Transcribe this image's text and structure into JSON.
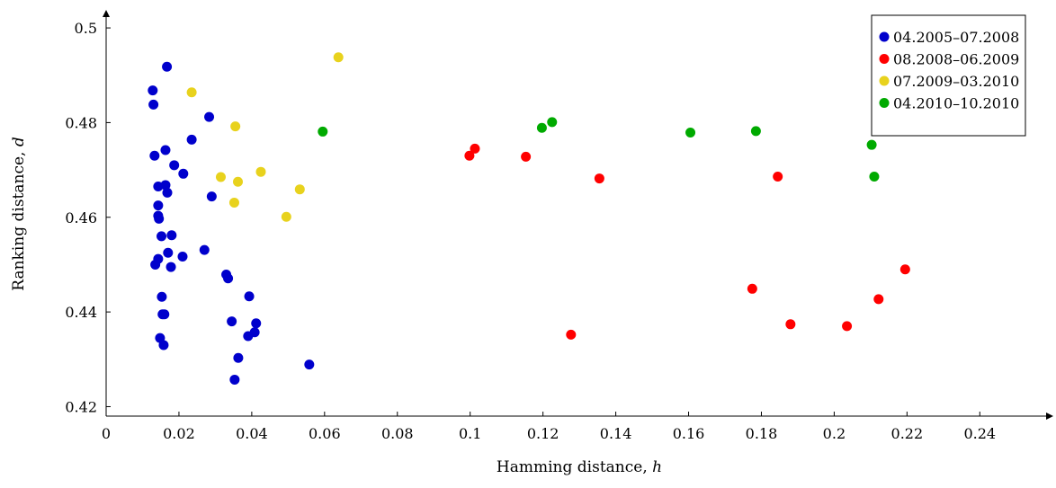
{
  "chart_data": {
    "type": "scatter",
    "xlabel": "Hamming distance, ",
    "xlabel_var": "h",
    "ylabel": "Ranking distance, ",
    "ylabel_var": "d",
    "xlim": [
      0,
      0.255
    ],
    "ylim": [
      0.418,
      0.504
    ],
    "xticks": [
      0,
      0.02,
      0.04,
      0.06,
      0.08,
      0.1,
      0.12,
      0.14,
      0.16,
      0.18,
      0.2,
      0.22,
      0.24
    ],
    "xtick_labels": [
      "0",
      "0.02",
      "0.04",
      "0.06",
      "0.08",
      "0.1",
      "0.12",
      "0.14",
      "0.16",
      "0.18",
      "0.2",
      "0.22",
      "0.24"
    ],
    "yticks": [
      0.42,
      0.44,
      0.46,
      0.48,
      0.5
    ],
    "ytick_labels": [
      "0.42",
      "0.44",
      "0.46",
      "0.48",
      "0.5"
    ],
    "grid": false,
    "legend_position": "top-right",
    "series": [
      {
        "name": "04.2005–07.2008",
        "color": "#0000cc",
        "points": [
          [
            0.0167,
            0.4918
          ],
          [
            0.0128,
            0.4868
          ],
          [
            0.013,
            0.4838
          ],
          [
            0.0283,
            0.4812
          ],
          [
            0.0235,
            0.4764
          ],
          [
            0.0163,
            0.4742
          ],
          [
            0.0133,
            0.473
          ],
          [
            0.0187,
            0.471
          ],
          [
            0.0212,
            0.4692
          ],
          [
            0.0143,
            0.4665
          ],
          [
            0.0163,
            0.4668
          ],
          [
            0.0168,
            0.4652
          ],
          [
            0.029,
            0.4644
          ],
          [
            0.0143,
            0.4625
          ],
          [
            0.0143,
            0.4603
          ],
          [
            0.0145,
            0.4597
          ],
          [
            0.0152,
            0.456
          ],
          [
            0.018,
            0.4562
          ],
          [
            0.027,
            0.4531
          ],
          [
            0.017,
            0.4525
          ],
          [
            0.021,
            0.4517
          ],
          [
            0.0143,
            0.4512
          ],
          [
            0.0135,
            0.45
          ],
          [
            0.0178,
            0.4495
          ],
          [
            0.033,
            0.4479
          ],
          [
            0.0335,
            0.4471
          ],
          [
            0.0393,
            0.4433
          ],
          [
            0.0153,
            0.4432
          ],
          [
            0.0155,
            0.4395
          ],
          [
            0.016,
            0.4395
          ],
          [
            0.0345,
            0.438
          ],
          [
            0.0412,
            0.4376
          ],
          [
            0.0408,
            0.4357
          ],
          [
            0.039,
            0.4349
          ],
          [
            0.0148,
            0.4345
          ],
          [
            0.0158,
            0.433
          ],
          [
            0.0363,
            0.4303
          ],
          [
            0.0558,
            0.4289
          ],
          [
            0.0353,
            0.4257
          ]
        ]
      },
      {
        "name": "08.2008–06.2009",
        "color": "#ff0000",
        "points": [
          [
            0.1013,
            0.4745
          ],
          [
            0.0998,
            0.473
          ],
          [
            0.1153,
            0.4728
          ],
          [
            0.1355,
            0.4682
          ],
          [
            0.1845,
            0.4686
          ],
          [
            0.2195,
            0.449
          ],
          [
            0.1775,
            0.4449
          ],
          [
            0.2122,
            0.4427
          ],
          [
            0.188,
            0.4374
          ],
          [
            0.2035,
            0.437
          ],
          [
            0.1277,
            0.4352
          ]
        ]
      },
      {
        "name": "07.2009–03.2010",
        "color": "#e8d21d",
        "points": [
          [
            0.0638,
            0.4938
          ],
          [
            0.0235,
            0.4864
          ],
          [
            0.0355,
            0.4792
          ],
          [
            0.0425,
            0.4696
          ],
          [
            0.0315,
            0.4685
          ],
          [
            0.0362,
            0.4675
          ],
          [
            0.0532,
            0.4659
          ],
          [
            0.0352,
            0.4631
          ],
          [
            0.0495,
            0.4601
          ]
        ]
      },
      {
        "name": "04.2010–10.2010",
        "color": "#00aa00",
        "points": [
          [
            0.1225,
            0.4801
          ],
          [
            0.1197,
            0.4789
          ],
          [
            0.0595,
            0.4781
          ],
          [
            0.1785,
            0.4782
          ],
          [
            0.1605,
            0.4779
          ],
          [
            0.2103,
            0.4753
          ],
          [
            0.211,
            0.4686
          ]
        ]
      }
    ]
  }
}
